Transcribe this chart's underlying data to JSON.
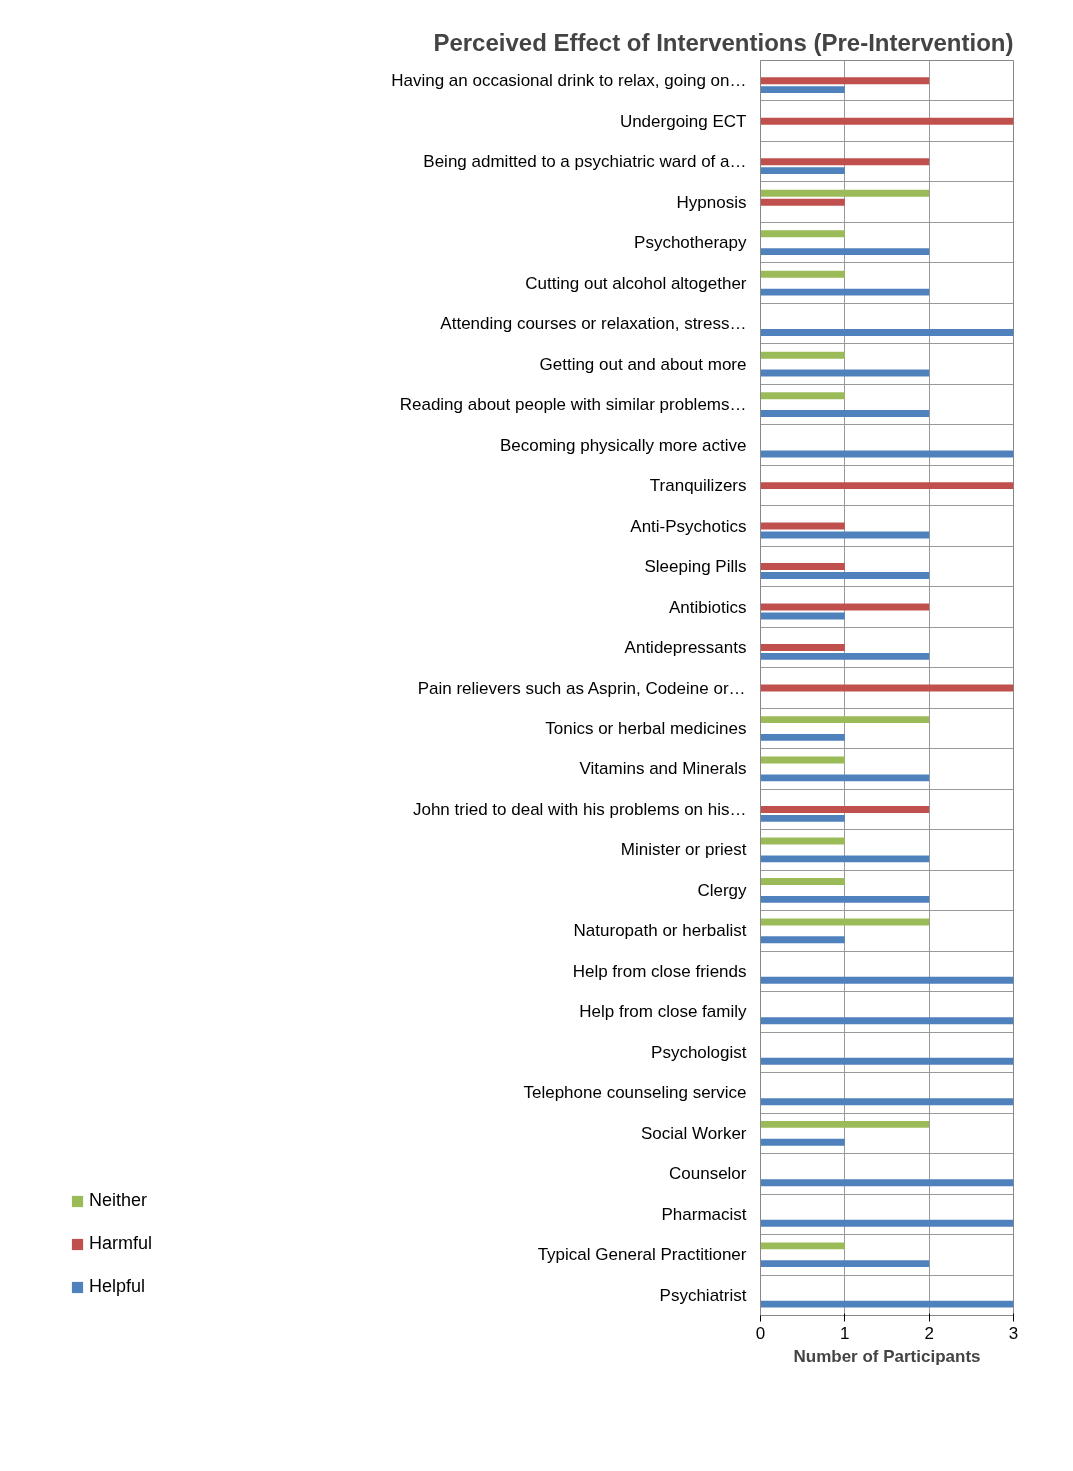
{
  "chart_data": {
    "type": "bar",
    "orientation": "horizontal",
    "title": "Perceived Effect of Interventions (Pre-Intervention)",
    "xlabel": "Number of Participants",
    "categories": [
      "Having an occasional drink to relax, going on…",
      "Undergoing ECT",
      "Being admitted to a psychiatric ward of a…",
      "Hypnosis",
      "Psychotherapy",
      "Cutting out alcohol altogether",
      "Attending courses or relaxation, stress…",
      "Getting out and about more",
      "Reading about people with similar problems…",
      "Becoming physically more active",
      "Tranquilizers",
      "Anti-Psychotics",
      "Sleeping Pills",
      "Antibiotics",
      "Antidepressants",
      "Pain relievers such as Asprin, Codeine or…",
      "Tonics or herbal medicines",
      "Vitamins and Minerals",
      "John tried to deal with his problems on his…",
      "Minister or priest",
      "Clergy",
      "Naturopath or herbalist",
      "Help from close friends",
      "Help from close family",
      "Psychologist",
      "Telephone counseling service",
      "Social Worker",
      "Counselor",
      "Pharmacist",
      "Typical General Practitioner",
      "Psychiatrist"
    ],
    "series": [
      {
        "name": "Neither",
        "color": "#9bbb59",
        "values": [
          0,
          0,
          0,
          2,
          1,
          1,
          0,
          1,
          1,
          0,
          0,
          0,
          0,
          0,
          0,
          0,
          2,
          1,
          0,
          1,
          1,
          2,
          0,
          0,
          0,
          0,
          2,
          0,
          0,
          1,
          0
        ]
      },
      {
        "name": "Harmful",
        "color": "#c0504d",
        "values": [
          2,
          3,
          2,
          1,
          0,
          0,
          0,
          0,
          0,
          0,
          3,
          1,
          1,
          2,
          1,
          3,
          0,
          0,
          2,
          0,
          0,
          0,
          0,
          0,
          0,
          0,
          0,
          0,
          0,
          0,
          0
        ]
      },
      {
        "name": "Helpful",
        "color": "#4f81bd",
        "values": [
          1,
          0,
          1,
          0,
          2,
          2,
          3,
          2,
          2,
          3,
          0,
          2,
          2,
          1,
          2,
          0,
          1,
          2,
          1,
          2,
          2,
          1,
          3,
          3,
          3,
          3,
          1,
          3,
          3,
          2,
          3
        ]
      }
    ],
    "xlim": [
      0,
      3
    ],
    "xticks": [
      0,
      1,
      2,
      3
    ],
    "grid": true,
    "legend": "bottom left"
  }
}
